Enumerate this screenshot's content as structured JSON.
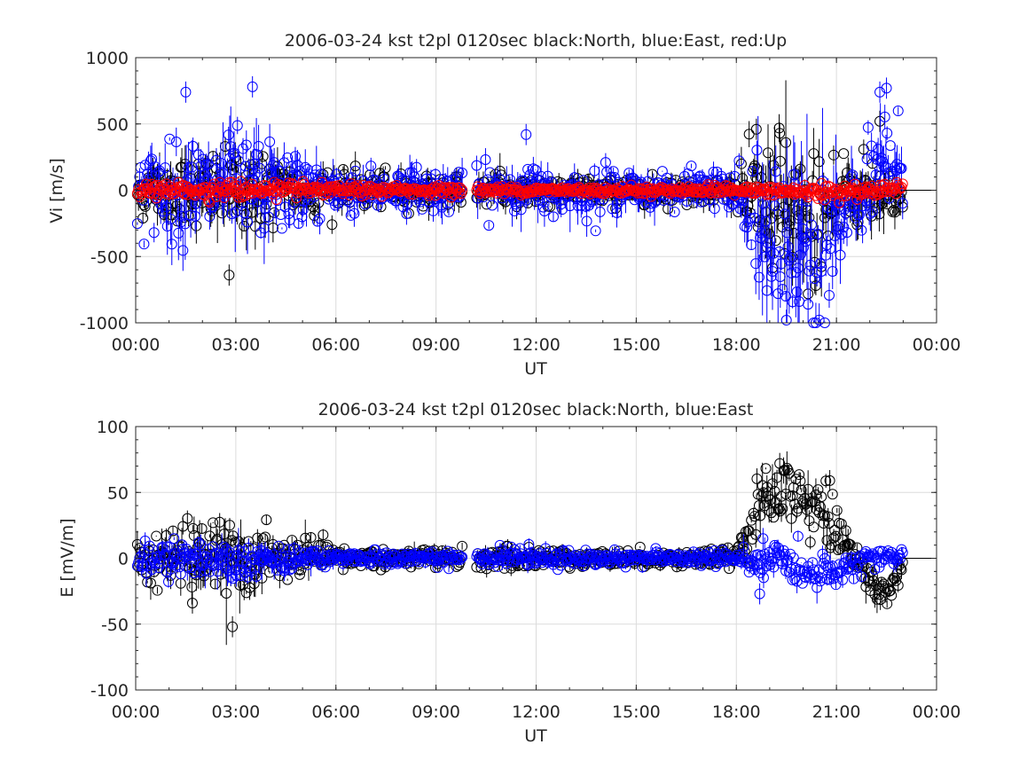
{
  "colors": {
    "north": "#000000",
    "east": "#0000ff",
    "up": "#ff0000",
    "grid": "#dcdcdc",
    "axis": "#262626"
  },
  "chart_data": [
    {
      "type": "scatter",
      "title": "2006-03-24 kst t2pl 0120sec black:North, blue:East, red:Up",
      "xlabel": "UT",
      "ylabel": "Vi [m/s]",
      "xlim": [
        0,
        24
      ],
      "ylim": [
        -1000,
        1000
      ],
      "x_tick_labels": [
        "00:00",
        "03:00",
        "06:00",
        "09:00",
        "12:00",
        "15:00",
        "18:00",
        "21:00",
        "00:00"
      ],
      "y_ticks": [
        -1000,
        -500,
        0,
        500,
        1000
      ],
      "y_tick_labels": [
        "-1000",
        "-500",
        "0",
        "500",
        "1000"
      ],
      "grid": true,
      "error_bars": true,
      "data_gap_hours": [
        9.8,
        10.2
      ],
      "data_end_hour": 23.0,
      "series": [
        {
          "color": "north",
          "envelope_hours": [
            0,
            1.5,
            3,
            4.5,
            6,
            7.5,
            9,
            10.5,
            12,
            13.5,
            15,
            16.5,
            18,
            18.7,
            19.3,
            20,
            20.7,
            21.3,
            22,
            22.5,
            23
          ],
          "envelope_amplitude": [
            180,
            220,
            300,
            200,
            130,
            110,
            110,
            120,
            110,
            100,
            90,
            90,
            100,
            420,
            520,
            500,
            420,
            300,
            250,
            200,
            150
          ],
          "envelope_offset": [
            0,
            0,
            0,
            0,
            0,
            0,
            0,
            0,
            0,
            0,
            0,
            0,
            0,
            -100,
            -200,
            -250,
            -150,
            0,
            0,
            -50,
            -50
          ],
          "notable_points": [
            {
              "x": 18.6,
              "y": 460
            },
            {
              "x": 19.3,
              "y": 430
            },
            {
              "x": 22.3,
              "y": 520
            },
            {
              "x": 2.8,
              "y": -640
            }
          ]
        },
        {
          "color": "east",
          "envelope_hours": [
            0,
            1.5,
            3,
            4.5,
            6,
            7.5,
            9,
            10.5,
            12,
            13.5,
            15,
            16.5,
            18,
            18.7,
            19.3,
            20,
            20.7,
            21.3,
            22,
            22.5,
            23
          ],
          "envelope_amplitude": [
            240,
            320,
            380,
            260,
            160,
            140,
            150,
            160,
            170,
            150,
            140,
            120,
            130,
            520,
            650,
            600,
            520,
            280,
            300,
            420,
            300
          ],
          "envelope_offset": [
            0,
            0,
            0,
            0,
            0,
            0,
            0,
            0,
            0,
            0,
            0,
            0,
            0,
            -350,
            -450,
            -450,
            -400,
            -200,
            0,
            250,
            150
          ],
          "notable_points": [
            {
              "x": 1.5,
              "y": 740
            },
            {
              "x": 3.5,
              "y": 780
            },
            {
              "x": 11.7,
              "y": 420
            },
            {
              "x": 22.3,
              "y": 740
            },
            {
              "x": 22.5,
              "y": 770
            },
            {
              "x": 19.5,
              "y": -980
            }
          ]
        },
        {
          "color": "up",
          "envelope_hours": [
            0,
            3,
            6,
            9,
            12,
            15,
            18,
            21,
            23
          ],
          "envelope_amplitude": [
            40,
            60,
            35,
            30,
            25,
            25,
            30,
            50,
            40
          ],
          "envelope_offset": [
            0,
            0,
            0,
            0,
            0,
            0,
            0,
            -20,
            20
          ],
          "notable_points": []
        }
      ]
    },
    {
      "type": "scatter",
      "title": "2006-03-24 kst t2pl 0120sec black:North, blue:East",
      "xlabel": "UT",
      "ylabel": "E [mV/m]",
      "xlim": [
        0,
        24
      ],
      "ylim": [
        -100,
        100
      ],
      "x_tick_labels": [
        "00:00",
        "03:00",
        "06:00",
        "09:00",
        "12:00",
        "15:00",
        "18:00",
        "21:00",
        "00:00"
      ],
      "y_ticks": [
        -100,
        -50,
        0,
        50,
        100
      ],
      "y_tick_labels": [
        "-100",
        "-50",
        "0",
        "50",
        "100"
      ],
      "grid": true,
      "error_bars": true,
      "data_gap_hours": [
        9.8,
        10.2
      ],
      "data_end_hour": 23.0,
      "series": [
        {
          "color": "north",
          "envelope_hours": [
            0,
            1.5,
            3,
            4.5,
            6,
            7.5,
            9,
            10.5,
            12,
            13.5,
            15,
            16.5,
            18,
            18.5,
            19.3,
            20,
            20.7,
            21.3,
            22,
            22.5,
            23
          ],
          "envelope_amplitude": [
            15,
            22,
            25,
            15,
            8,
            7,
            7,
            7,
            7,
            6,
            6,
            6,
            6,
            20,
            22,
            22,
            20,
            12,
            12,
            10,
            8
          ],
          "envelope_offset": [
            0,
            0,
            0,
            0,
            0,
            0,
            0,
            0,
            0,
            0,
            0,
            0,
            0,
            30,
            50,
            45,
            30,
            15,
            -20,
            -25,
            -10
          ],
          "notable_points": [
            {
              "x": 2.9,
              "y": -52
            },
            {
              "x": 19.3,
              "y": 72
            },
            {
              "x": 20.8,
              "y": 59
            },
            {
              "x": 1.7,
              "y": -34
            }
          ]
        },
        {
          "color": "east",
          "envelope_hours": [
            0,
            1.5,
            3,
            4.5,
            6,
            7.5,
            9,
            10.5,
            12,
            13.5,
            15,
            16.5,
            18,
            18.7,
            19.3,
            20,
            20.7,
            21.3,
            22,
            22.5,
            23
          ],
          "envelope_amplitude": [
            10,
            12,
            14,
            10,
            6,
            5,
            5,
            6,
            6,
            5,
            5,
            5,
            5,
            12,
            12,
            10,
            10,
            8,
            8,
            8,
            6
          ],
          "envelope_offset": [
            0,
            0,
            0,
            0,
            0,
            0,
            0,
            0,
            0,
            0,
            0,
            0,
            0,
            -5,
            0,
            -10,
            -10,
            -5,
            0,
            0,
            0
          ],
          "notable_points": [
            {
              "x": 18.7,
              "y": -27
            },
            {
              "x": 18.8,
              "y": 15
            }
          ]
        }
      ]
    }
  ]
}
